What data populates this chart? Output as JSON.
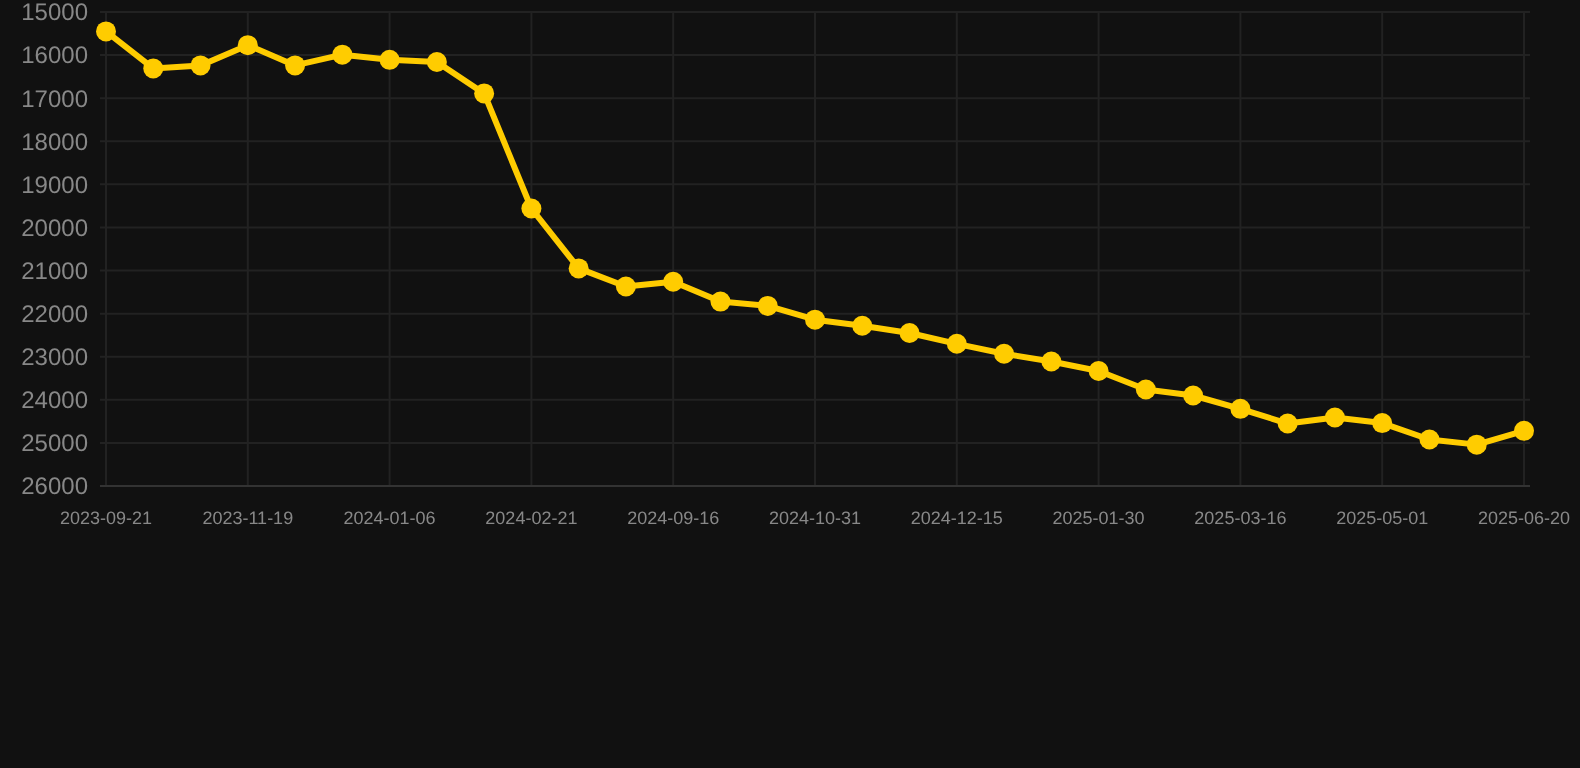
{
  "chart_data": {
    "type": "line",
    "categories": [
      "2023-09-21",
      null,
      null,
      "2023-11-19",
      null,
      null,
      "2024-01-06",
      null,
      null,
      "2024-02-21",
      null,
      null,
      "2024-09-16",
      null,
      null,
      "2024-10-31",
      null,
      null,
      "2024-12-15",
      null,
      null,
      "2025-01-30",
      null,
      null,
      "2025-03-16",
      null,
      null,
      "2025-05-01",
      null,
      null,
      "2025-06-20"
    ],
    "series": [
      {
        "color": "#ffcc00",
        "values": [
          15450,
          16310,
          16240,
          15770,
          16240,
          15990,
          16110,
          16160,
          16890,
          19560,
          20950,
          21370,
          21260,
          21720,
          21820,
          22140,
          22280,
          22450,
          22700,
          22930,
          23110,
          23330,
          23760,
          23900,
          24210,
          24550,
          24410,
          24540,
          24920,
          25040,
          24720
        ]
      }
    ],
    "ylim": [
      26000,
      15000
    ],
    "yticks": [
      15000,
      16000,
      17000,
      18000,
      19000,
      20000,
      21000,
      22000,
      23000,
      24000,
      25000,
      26000
    ],
    "grid": true,
    "marker": "circle",
    "line_style": "solid"
  }
}
